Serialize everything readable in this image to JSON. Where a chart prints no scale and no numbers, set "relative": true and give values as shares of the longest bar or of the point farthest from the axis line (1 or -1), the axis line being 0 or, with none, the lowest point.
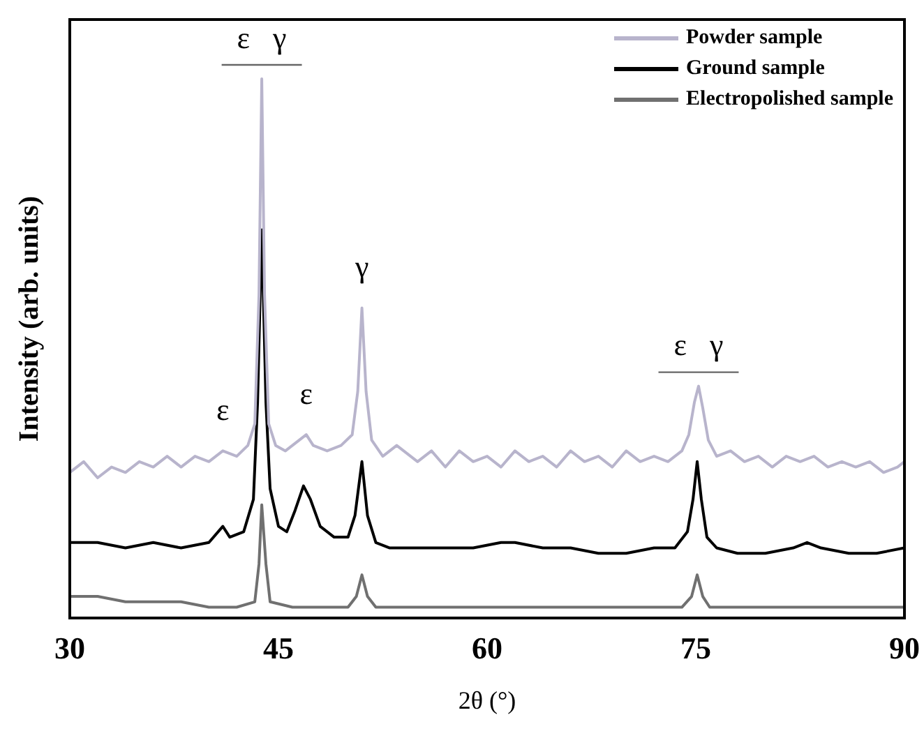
{
  "chart_data": {
    "type": "line",
    "xlabel": "2θ (°)",
    "ylabel": "Intensity (arb. units)",
    "relative": true,
    "xlim": [
      30,
      90
    ],
    "xticks": [
      30,
      45,
      60,
      75,
      90
    ],
    "grid": false,
    "legend": "top right",
    "marker": "none",
    "line_style": "solid",
    "annotations": [
      {
        "text": "ε   γ",
        "x": 43.8,
        "y": 1.0
      },
      {
        "text": "ε",
        "x": 41,
        "y": 0.31
      },
      {
        "text": "ε",
        "x": 47,
        "y": 0.34
      },
      {
        "text": "γ",
        "x": 51.0,
        "y": 0.575
      },
      {
        "text": "ε   γ",
        "x": 75.2,
        "y": 0.43
      }
    ],
    "series": [
      {
        "name": "Powder sample",
        "color": "#b8b4cc",
        "x": [
          30,
          31,
          32,
          33,
          34,
          35,
          36,
          37,
          38,
          39,
          40,
          41,
          42,
          42.8,
          43.3,
          43.6,
          43.8,
          44.0,
          44.3,
          44.8,
          45.5,
          46.5,
          47,
          47.5,
          48.5,
          49.5,
          50.3,
          50.7,
          51.0,
          51.3,
          51.7,
          52.5,
          53.5,
          55,
          56,
          57,
          58,
          59,
          60,
          61,
          62,
          63,
          64,
          65,
          66,
          67,
          68,
          69,
          70,
          71,
          72,
          73,
          74,
          74.5,
          74.9,
          75.2,
          75.5,
          75.9,
          76.5,
          77.5,
          78.5,
          79.5,
          80.5,
          81.5,
          82.5,
          83.5,
          84.5,
          85.5,
          86.5,
          87.5,
          88.5,
          89.5,
          90
        ],
        "values": [
          0.27,
          0.29,
          0.26,
          0.28,
          0.27,
          0.29,
          0.28,
          0.3,
          0.28,
          0.3,
          0.29,
          0.31,
          0.3,
          0.32,
          0.36,
          0.6,
          1.0,
          0.6,
          0.36,
          0.32,
          0.31,
          0.33,
          0.34,
          0.32,
          0.31,
          0.32,
          0.34,
          0.42,
          0.575,
          0.42,
          0.33,
          0.3,
          0.32,
          0.29,
          0.31,
          0.28,
          0.31,
          0.29,
          0.3,
          0.28,
          0.31,
          0.29,
          0.3,
          0.28,
          0.31,
          0.29,
          0.3,
          0.28,
          0.31,
          0.29,
          0.3,
          0.29,
          0.31,
          0.34,
          0.4,
          0.43,
          0.39,
          0.33,
          0.3,
          0.31,
          0.29,
          0.3,
          0.28,
          0.3,
          0.29,
          0.3,
          0.28,
          0.29,
          0.28,
          0.29,
          0.27,
          0.28,
          0.29
        ]
      },
      {
        "name": "Ground sample",
        "color": "#000000",
        "x": [
          30,
          32,
          34,
          36,
          38,
          40,
          41,
          41.5,
          42.5,
          43.2,
          43.5,
          43.8,
          44.1,
          44.4,
          45,
          45.6,
          46.2,
          46.8,
          47.3,
          48,
          49,
          50,
          50.5,
          51.0,
          51.4,
          52,
          53,
          55,
          57,
          59,
          61,
          62,
          64,
          66,
          68,
          70,
          72,
          73.5,
          74.4,
          74.8,
          75.1,
          75.4,
          75.8,
          76.5,
          78,
          80,
          82,
          83,
          84,
          86,
          88,
          90
        ],
        "values": [
          0.14,
          0.14,
          0.13,
          0.14,
          0.13,
          0.14,
          0.17,
          0.15,
          0.16,
          0.22,
          0.4,
          0.72,
          0.4,
          0.24,
          0.17,
          0.16,
          0.2,
          0.245,
          0.22,
          0.17,
          0.15,
          0.15,
          0.19,
          0.29,
          0.19,
          0.14,
          0.13,
          0.13,
          0.13,
          0.13,
          0.14,
          0.14,
          0.13,
          0.13,
          0.12,
          0.12,
          0.13,
          0.13,
          0.16,
          0.22,
          0.29,
          0.22,
          0.15,
          0.13,
          0.12,
          0.12,
          0.13,
          0.14,
          0.13,
          0.12,
          0.12,
          0.13
        ]
      },
      {
        "name": "Electropolished sample",
        "color": "#707070",
        "x": [
          30,
          32,
          34,
          36,
          38,
          40,
          42,
          43.3,
          43.6,
          43.8,
          44.1,
          44.4,
          46,
          48,
          50,
          50.6,
          51.0,
          51.4,
          52,
          55,
          60,
          65,
          70,
          74,
          74.7,
          75.1,
          75.5,
          76,
          80,
          85,
          90
        ],
        "values": [
          0.04,
          0.04,
          0.03,
          0.03,
          0.03,
          0.02,
          0.02,
          0.03,
          0.1,
          0.21,
          0.1,
          0.03,
          0.02,
          0.02,
          0.02,
          0.04,
          0.08,
          0.04,
          0.02,
          0.02,
          0.02,
          0.02,
          0.02,
          0.02,
          0.04,
          0.08,
          0.04,
          0.02,
          0.02,
          0.02,
          0.02
        ]
      }
    ]
  }
}
